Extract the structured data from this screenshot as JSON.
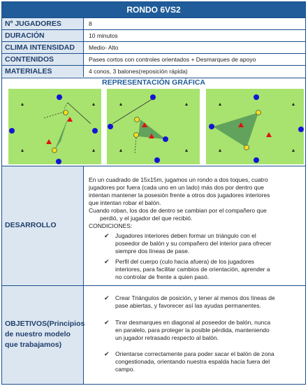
{
  "title": "RONDO 6VS2",
  "info_rows": [
    {
      "label": "Nº JUGADORES",
      "value": "8"
    },
    {
      "label": "DURACIÓN",
      "value": "10 minutos"
    },
    {
      "label": "CLIMA INTENSIDAD",
      "value": "Medio- Alto"
    },
    {
      "label": "CONTENIDOS",
      "value": "Pases cortos con controles orientados + Desmarques de apoyo"
    },
    {
      "label": "MATERIALES",
      "value": "4 conos, 3 balones(reposición rápida)"
    }
  ],
  "graphic_title": "REPRESENTACIÓN GRÁFICA",
  "desarrollo": {
    "label": "DESARROLLO",
    "intro_lines": [
      "En un cuadrado de 15x15m, jugamos un rondo a dos toques, cuatro",
      "jugadores por fuera (cada uno en un lado) más dos por dentro que",
      "intentan mantener la posesión frente a otros dos jugadores interiores",
      "que intentan robar el balón.",
      "Cuando roban, los dos de dentro se cambian por el compañero que",
      "perdió, y el jugador del que recibió.",
      "CONDICIONES:"
    ],
    "conditions": [
      [
        "Jugadores interiores deben formar un triángulo con el",
        "poseedor de balón y su compañero del interior para ofrecer",
        "siempre dos líneas de pase."
      ],
      [
        "Perfil del cuerpo (culo hacia afuera) de los jugadores",
        "interiores, para facilitar cambios de orientación, aprender a",
        "no controlar de frente a quien pasó."
      ]
    ]
  },
  "objetivos": {
    "label_lines": [
      "OBJETIVOS(Principios",
      "de nuestro modelo",
      "que trabajamos)"
    ],
    "items": [
      [
        "Crear Triángulos de posición, y tener al menos dos líneas de",
        "pase abiertas, y favorecer así las ayudas permanentes."
      ],
      [
        "Tirar desmarques en diagonal al poseedor de balón, nunca",
        "en paralelo, para proteger la posible pérdida, manteniendo",
        "un jugador retrasado respecto al balón."
      ],
      [
        "Orientarse correctamente para poder sacar el balón de zona",
        "congestionada, orientando nuestra espalda hacia fuera del",
        "campo."
      ]
    ]
  },
  "colors": {
    "header": "#1f5c99",
    "label_bg": "#dce6f1",
    "field": "#a7e36e",
    "triangle": "#5a9a5a",
    "blue_player": "#1414d6",
    "red_player": "#e01010",
    "yellow_player": "#f2e01a"
  }
}
